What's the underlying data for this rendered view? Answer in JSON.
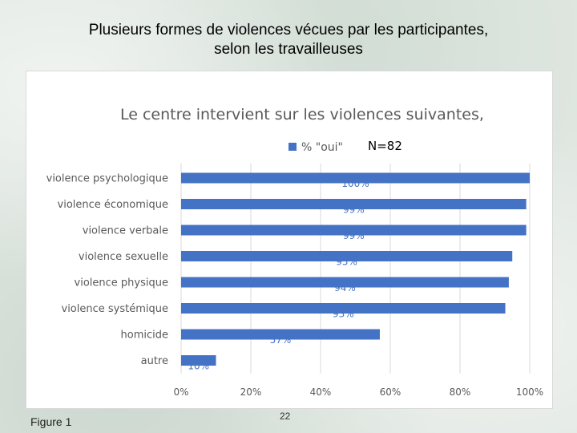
{
  "slide": {
    "title_line1": "Plusieurs formes de violences vécues par les participantes,",
    "title_line2": "selon les travailleuses",
    "figure_label": "Figure 1",
    "page_number": "22"
  },
  "colors": {
    "bar": "#4472c4",
    "label": "#595959",
    "grid": "#d9d9d9"
  },
  "chart_data": {
    "type": "bar",
    "orientation": "horizontal",
    "title": "Le centre intervient sur les violences suivantes,",
    "legend_label": "% \"oui\"",
    "sample_size": "N=82",
    "categories": [
      "violence psychologique",
      "violence économique",
      "violence verbale",
      "violence sexuelle",
      "violence physique",
      "violence systémique",
      "homicide",
      "autre"
    ],
    "values": [
      100,
      99,
      99,
      95,
      94,
      93,
      57,
      10
    ],
    "data_labels": [
      "100%",
      "99%",
      "99%",
      "95%",
      "94%",
      "93%",
      "57%",
      "10%"
    ],
    "x_ticks": [
      "0%",
      "20%",
      "40%",
      "60%",
      "80%",
      "100%"
    ],
    "xlim": [
      0,
      100
    ],
    "grid": true,
    "legend_position": "top"
  }
}
